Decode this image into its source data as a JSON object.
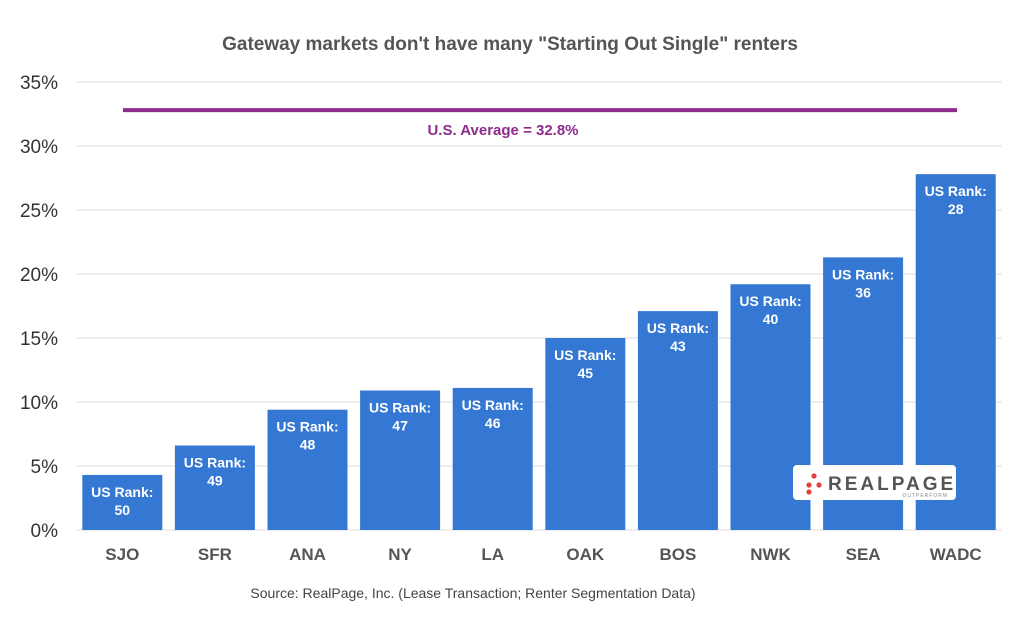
{
  "chart_data": {
    "type": "bar",
    "title": "Gateway markets don't have many \"Starting Out Single\" renters",
    "categories": [
      "SJO",
      "SFR",
      "ANA",
      "NY",
      "LA",
      "OAK",
      "BOS",
      "NWK",
      "SEA",
      "WADC"
    ],
    "values": [
      4.3,
      6.6,
      9.4,
      10.9,
      11.1,
      15.0,
      17.1,
      19.2,
      21.3,
      27.8
    ],
    "bar_labels": [
      {
        "line1": "US Rank:",
        "line2": "50"
      },
      {
        "line1": "US Rank:",
        "line2": "49"
      },
      {
        "line1": "US Rank:",
        "line2": "48"
      },
      {
        "line1": "US Rank:",
        "line2": "47"
      },
      {
        "line1": "US Rank:",
        "line2": "46"
      },
      {
        "line1": "US Rank:",
        "line2": "45"
      },
      {
        "line1": "US Rank:",
        "line2": "43"
      },
      {
        "line1": "US Rank:",
        "line2": "40"
      },
      {
        "line1": "US Rank:",
        "line2": "36"
      },
      {
        "line1": "US Rank:",
        "line2": "28"
      }
    ],
    "reference_line": {
      "value": 32.8,
      "label": "U.S. Average = 32.8%",
      "color": "#8e2c8c"
    },
    "ylim": [
      0,
      35
    ],
    "yticks": [
      0,
      5,
      10,
      15,
      20,
      25,
      30,
      35
    ],
    "ytick_labels": [
      "0%",
      "5%",
      "10%",
      "15%",
      "20%",
      "25%",
      "30%",
      "35%"
    ],
    "xlabel": "",
    "ylabel": "",
    "grid": true,
    "bar_color": "#3478d4",
    "source": "Source: RealPage, Inc. (Lease Transaction; Renter Segmentation Data)"
  },
  "logo": {
    "text": "REALPAGE",
    "tagline": "OUTPERFORM",
    "dot_color": "#e0433a"
  }
}
